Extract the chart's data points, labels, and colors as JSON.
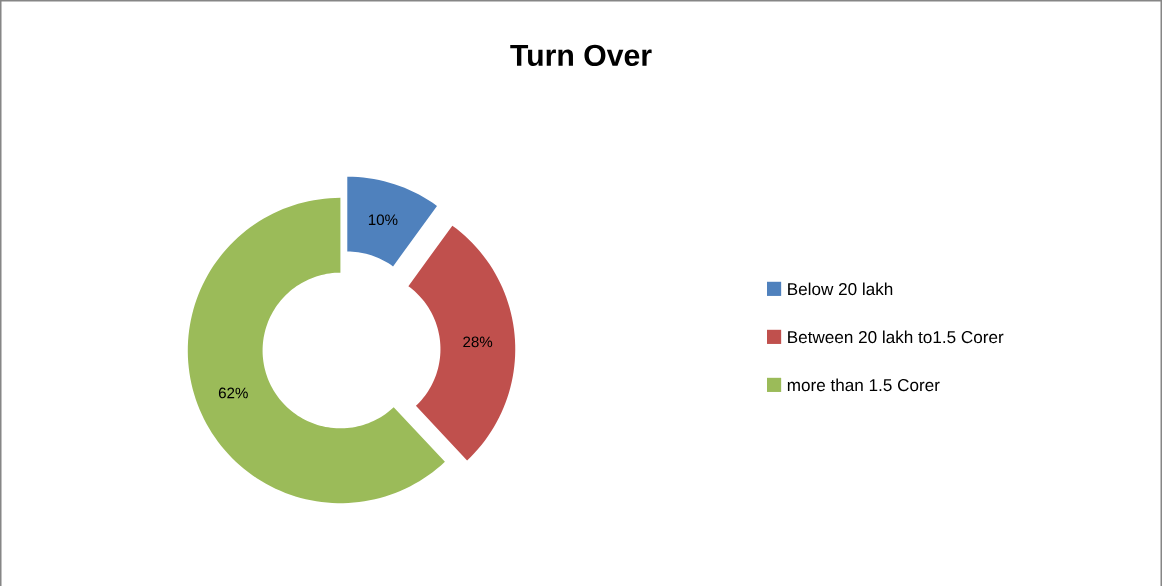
{
  "chart_data": {
    "type": "donut",
    "title": "Turn Over",
    "categories": [
      "Below 20 lakh",
      "Between 20 lakh to1.5 Corer",
      "more than 1.5 Corer"
    ],
    "values": [
      10,
      28,
      62
    ],
    "colors": [
      "#4f81bd",
      "#c0504d",
      "#9bbb59"
    ],
    "value_labels": [
      "10%",
      "28%",
      "62%"
    ],
    "legend": "right"
  }
}
